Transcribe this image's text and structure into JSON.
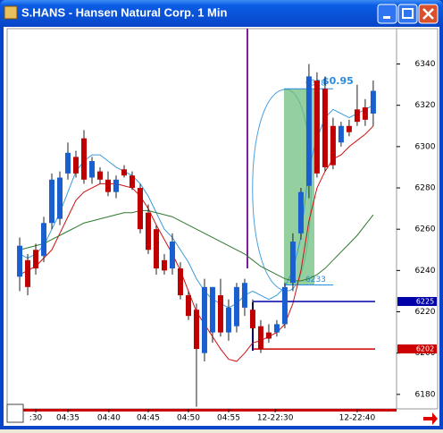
{
  "window": {
    "title": "S.HANS - Hansen Natural Corp. 1 Min"
  },
  "chart_data": {
    "type": "candlestick",
    "x": [
      0,
      1,
      2,
      3,
      4,
      5,
      6,
      7,
      8,
      9,
      10,
      11,
      12,
      13,
      14,
      15,
      16,
      17,
      18,
      19,
      20,
      21,
      22,
      23,
      24,
      25,
      26,
      27,
      28,
      29,
      30,
      31,
      32,
      33,
      34,
      35,
      36,
      37,
      38,
      39,
      40,
      41,
      42,
      43,
      44
    ],
    "xlim": [
      -1.56,
      46.9
    ],
    "xticks": [
      {
        "value": 2,
        "label": ":30"
      },
      {
        "value": 6,
        "label": "04:35"
      },
      {
        "value": 11.1,
        "label": "04:40"
      },
      {
        "value": 16,
        "label": "04:45"
      },
      {
        "value": 21,
        "label": "04:50"
      },
      {
        "value": 26,
        "label": "04:55"
      },
      {
        "value": 31.8,
        "label": "12-22:30"
      },
      {
        "value": 42,
        "label": "12-22:40"
      }
    ],
    "ylim": [
      6173,
      6358
    ],
    "yticks": [
      6180,
      6200,
      6220,
      6240,
      6260,
      6280,
      6300,
      6320,
      6340
    ],
    "up_color": "#1a5fd0",
    "down_color": "#c00000",
    "candles": {
      "open": [
        6237,
        6245,
        6250,
        6247,
        6263,
        6265,
        6287,
        6295,
        6304,
        6285,
        6288,
        6284,
        6278,
        6289,
        6286,
        6280,
        6268,
        6260,
        6245,
        6241,
        6241,
        6228,
        6221,
        6200,
        6210,
        6228,
        6210,
        6213,
        6222,
        6221,
        6213,
        6210,
        6210,
        6214,
        6234,
        6258,
        6281,
        6332,
        6328,
        6310,
        6302,
        6310,
        6318,
        6319,
        6316
      ],
      "high": [
        6256,
        6248,
        6253,
        6266,
        6287,
        6288,
        6302,
        6298,
        6308,
        6295,
        6290,
        6288,
        6286,
        6291,
        6288,
        6282,
        6272,
        6262,
        6248,
        6258,
        6244,
        6230,
        6224,
        6236,
        6232,
        6236,
        6226,
        6234,
        6236,
        6226,
        6216,
        6214,
        6216,
        6234,
        6258,
        6280,
        6340,
        6336,
        6334,
        6314,
        6312,
        6313,
        6330,
        6323,
        6332
      ],
      "low": [
        6230,
        6228,
        6238,
        6244,
        6260,
        6262,
        6284,
        6285,
        6282,
        6282,
        6282,
        6276,
        6275,
        6285,
        6279,
        6258,
        6248,
        6238,
        6238,
        6238,
        6226,
        6216,
        6174,
        6196,
        6205,
        6208,
        6206,
        6210,
        6218,
        6210,
        6200,
        6205,
        6208,
        6212,
        6230,
        6255,
        6275,
        6285,
        6288,
        6289,
        6300,
        6305,
        6310,
        6310,
        6310
      ],
      "close": [
        6252,
        6232,
        6241,
        6263,
        6284,
        6285,
        6297,
        6287,
        6284,
        6293,
        6284,
        6278,
        6284,
        6286,
        6280,
        6260,
        6250,
        6241,
        6240,
        6254,
        6228,
        6218,
        6202,
        6232,
        6232,
        6210,
        6222,
        6232,
        6234,
        6212,
        6202,
        6207,
        6214,
        6232,
        6254,
        6278,
        6334,
        6287,
        6290,
        6291,
        6310,
        6307,
        6312,
        6313,
        6327
      ]
    },
    "lines": [
      {
        "color": "#3a9ad9",
        "values": [
          6248,
          6246,
          6248,
          6252,
          6260,
          6268,
          6278,
          6288,
          6293,
          6296,
          6296,
          6293,
          6290,
          6288,
          6286,
          6282,
          6276,
          6268,
          6260,
          6256,
          6250,
          6244,
          6236,
          6230,
          6226,
          6224,
          6222,
          6224,
          6228,
          6230,
          6228,
          6226,
          6228,
          6232,
          6240,
          6256,
          6290,
          6304,
          6314,
          6318,
          6316,
          6314,
          6316,
          6318,
          6320
        ]
      },
      {
        "color": "#d01010",
        "values": [
          6238,
          6240,
          6242,
          6246,
          6250,
          6258,
          6266,
          6274,
          6278,
          6280,
          6282,
          6282,
          6282,
          6281,
          6280,
          6276,
          6270,
          6262,
          6255,
          6248,
          6240,
          6230,
          6220,
          6214,
          6208,
          6202,
          6197,
          6196,
          6200,
          6205,
          6206,
          6208,
          6210,
          6214,
          6224,
          6240,
          6264,
          6280,
          6288,
          6294,
          6296,
          6300,
          6303,
          6306,
          6310
        ]
      },
      {
        "color": "#2f7a2f",
        "values": [
          6250,
          6251,
          6252,
          6253,
          6255,
          6257,
          6259,
          6261,
          6263,
          6264,
          6265,
          6266,
          6267,
          6268,
          6268,
          6269,
          6269,
          6268,
          6267,
          6266,
          6264,
          6262,
          6260,
          6258,
          6256,
          6254,
          6252,
          6250,
          6248,
          6245,
          6242,
          6240,
          6238,
          6236,
          6235,
          6235,
          6236,
          6238,
          6241,
          6245,
          6249,
          6253,
          6257,
          6262,
          6267
        ]
      }
    ],
    "price_lines": [
      {
        "value": 6225,
        "color": "#0000aa"
      },
      {
        "value": 6202,
        "color": "#cc0000"
      }
    ],
    "measure": {
      "high": 6328,
      "low": 6233,
      "label": "$0.95",
      "color": "#2a8ae0",
      "fill": "#6fbf7f"
    }
  }
}
